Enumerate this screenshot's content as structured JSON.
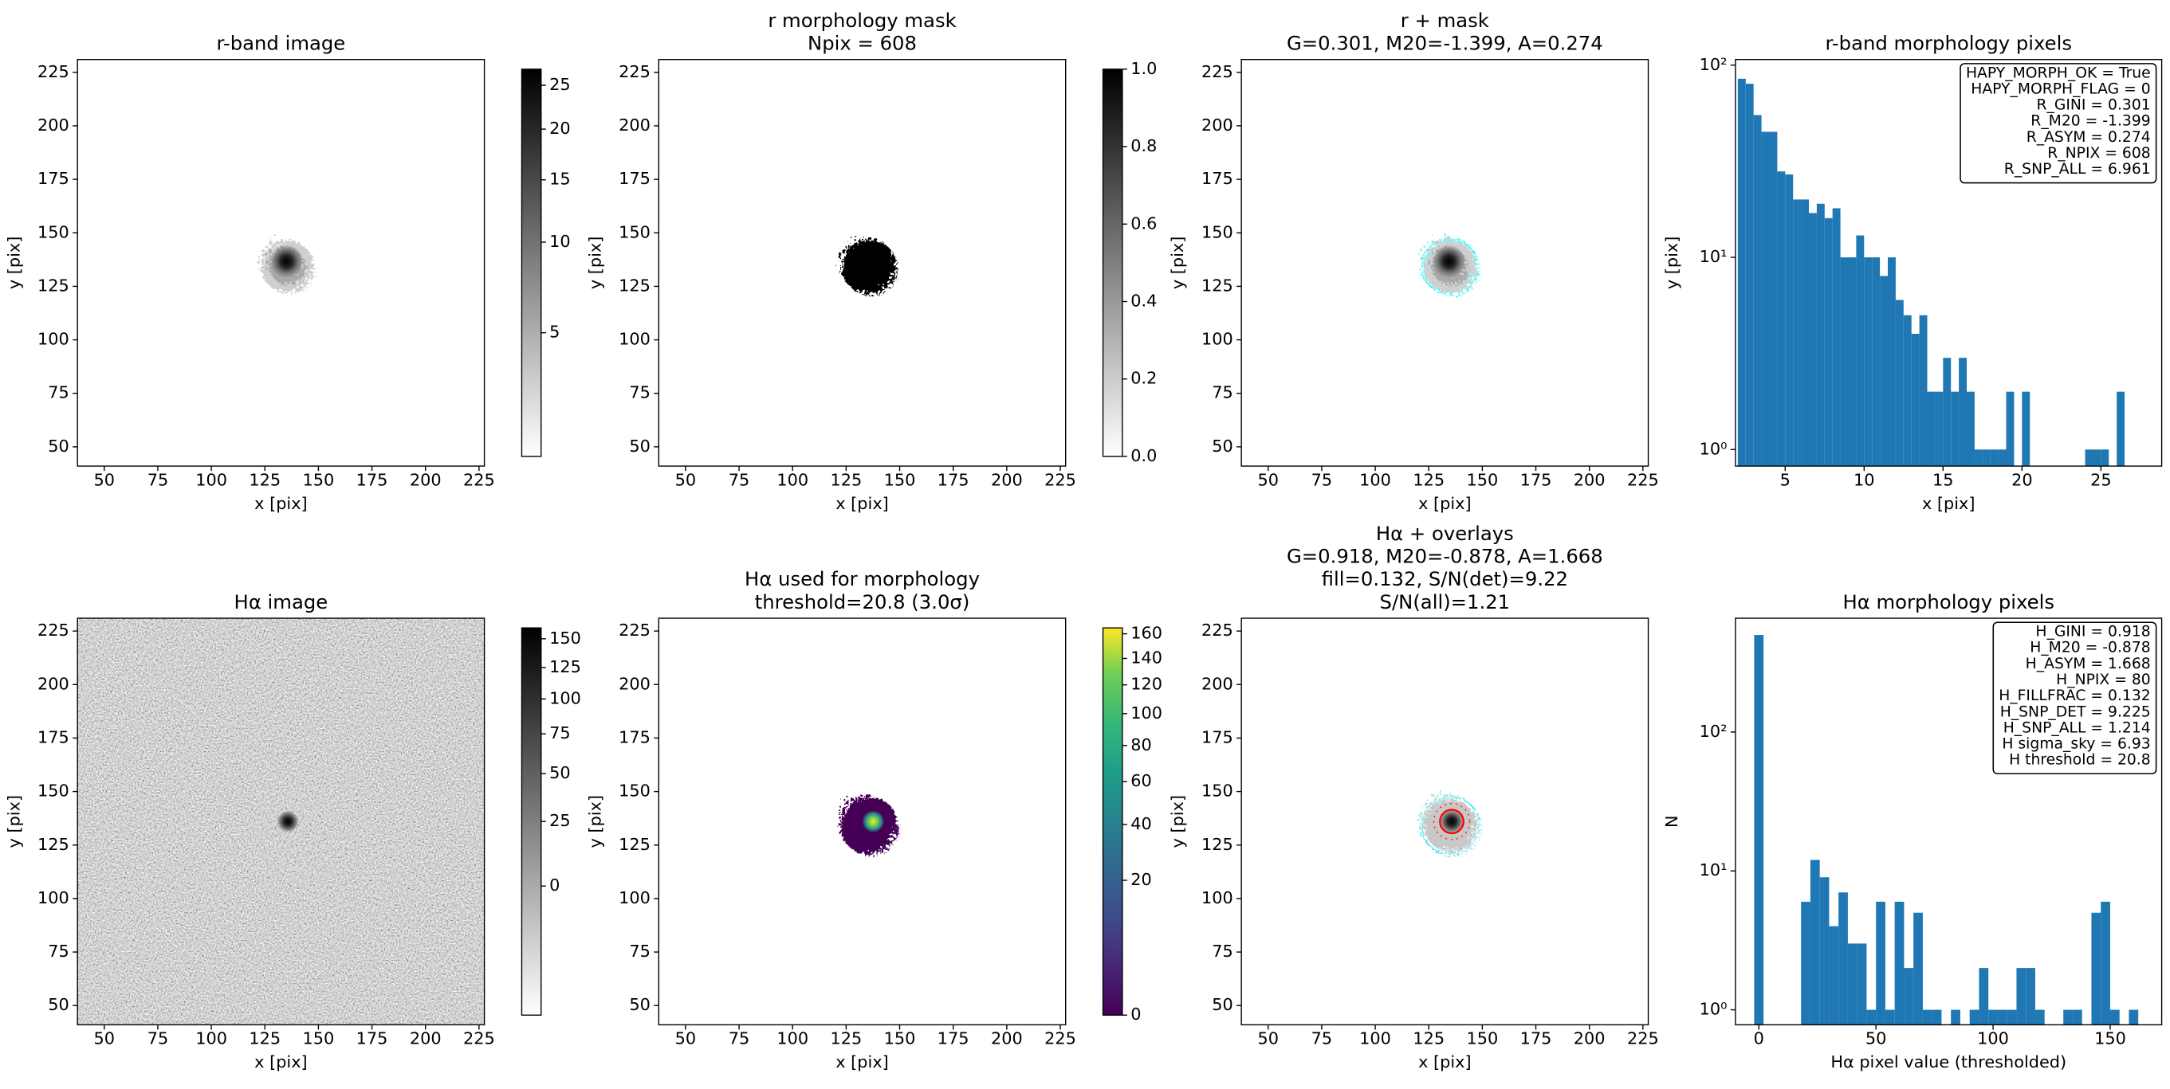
{
  "chart_data": [
    {
      "type": "image",
      "title": "r-band image",
      "xlabel": "x [pix]",
      "ylabel": "y [pix]",
      "xlim": [
        37.5,
        227.5
      ],
      "ylim": [
        41,
        231
      ],
      "xticks": [
        50,
        75,
        100,
        125,
        150,
        175,
        200,
        225
      ],
      "yticks": [
        50,
        75,
        100,
        125,
        150,
        175,
        200,
        225
      ],
      "cmap": "gray_r",
      "colorbar": {
        "lim": [
          2.5,
          27
        ],
        "scale": "sqrt",
        "ticks": [
          5,
          10,
          15,
          20,
          25
        ]
      }
    },
    {
      "type": "image",
      "title": [
        "r morphology mask",
        "Npix = 608"
      ],
      "xlabel": "x [pix]",
      "ylabel": "y [pix]",
      "xlim": [
        37.5,
        227.5
      ],
      "ylim": [
        41,
        231
      ],
      "xticks": [
        50,
        75,
        100,
        125,
        150,
        175,
        200,
        225
      ],
      "yticks": [
        50,
        75,
        100,
        125,
        150,
        175,
        200,
        225
      ],
      "cmap": "gray_r",
      "colorbar": {
        "lim": [
          0,
          1
        ],
        "scale": "linear",
        "ticks": [
          {
            "value": 0,
            "label": "0.0"
          },
          {
            "value": 0.2,
            "label": "0.2"
          },
          {
            "value": 0.4,
            "label": "0.4"
          },
          {
            "value": 0.6,
            "label": "0.6"
          },
          {
            "value": 0.8,
            "label": "0.8"
          },
          {
            "value": 1,
            "label": "1.0"
          }
        ]
      }
    },
    {
      "type": "image",
      "title": [
        "r + mask",
        "G=0.301, M20=-1.399, A=0.274"
      ],
      "xlabel": "x [pix]",
      "ylabel": "y [pix]",
      "xlim": [
        37.5,
        227.5
      ],
      "ylim": [
        41,
        231
      ],
      "xticks": [
        50,
        75,
        100,
        125,
        150,
        175,
        200,
        225
      ],
      "yticks": [
        50,
        75,
        100,
        125,
        150,
        175,
        200,
        225
      ]
    },
    {
      "type": "histogram",
      "title": "r-band morphology pixels",
      "xlabel": "x [pix]",
      "ylabel": "y [pix]",
      "color": "#1f77b4",
      "log_y": true,
      "bins": [
        2,
        2.5,
        3,
        3.5,
        4,
        4.5,
        5,
        5.5,
        6,
        6.5,
        7,
        7.5,
        8,
        8.5,
        9,
        9.5,
        10,
        10.5,
        11,
        11.5,
        12,
        12.5,
        13,
        13.5,
        14,
        14.5,
        15,
        15.5,
        16,
        16.5,
        17,
        17.5,
        18,
        18.5,
        19,
        19.5,
        20,
        20.5,
        21,
        21.5,
        22,
        22.5,
        23,
        23.5,
        24,
        24.5,
        25,
        25.5,
        26,
        26.5,
        27
      ],
      "counts": [
        85,
        80,
        55,
        45,
        45,
        28,
        27,
        20,
        20,
        17,
        19,
        16,
        18,
        10,
        10,
        13,
        10,
        10,
        8,
        10,
        6,
        5,
        4,
        5,
        2,
        2,
        3,
        2,
        3,
        2,
        1,
        1,
        1,
        1,
        2,
        0,
        2,
        0,
        0,
        0,
        0,
        0,
        0,
        0,
        1,
        1,
        1,
        0,
        2,
        0
      ],
      "xlim": [
        1.85,
        28.85
      ],
      "ylim": [
        0.82,
        107
      ],
      "xticks": [
        5,
        10,
        15,
        20,
        25
      ],
      "yticks": [
        {
          "value": 1,
          "label": "10⁰"
        },
        {
          "value": 10,
          "label": "10¹"
        },
        {
          "value": 100,
          "label": "10²"
        }
      ],
      "annotation_corner": "upper right",
      "annotation": [
        "HAPY_MORPH_OK = True",
        "HAPY_MORPH_FLAG = 0",
        "R_GINI = 0.301",
        "R_M20 = -1.399",
        "R_ASYM = 0.274",
        "R_NPIX = 608",
        "R_SNP_ALL = 6.961"
      ]
    },
    {
      "type": "image",
      "title": "Hα image",
      "xlabel": "x [pix]",
      "ylabel": "y [pix]",
      "xlim": [
        37.5,
        227.5
      ],
      "ylim": [
        41,
        231
      ],
      "xticks": [
        50,
        75,
        100,
        125,
        150,
        175,
        200,
        225
      ],
      "yticks": [
        50,
        75,
        100,
        125,
        150,
        175,
        200,
        225
      ],
      "cmap": "gray_r",
      "colorbar": {
        "lim": [
          -20,
          160
        ],
        "scale": "sqrt",
        "ticks": [
          0,
          25,
          50,
          75,
          100,
          125,
          150
        ]
      }
    },
    {
      "type": "image",
      "title": [
        "Hα used for morphology",
        "threshold=20.8 (3.0σ)"
      ],
      "xlabel": "x [pix]",
      "ylabel": "y [pix]",
      "xlim": [
        37.5,
        227.5
      ],
      "ylim": [
        41,
        231
      ],
      "xticks": [
        50,
        75,
        100,
        125,
        150,
        175,
        200,
        225
      ],
      "yticks": [
        50,
        75,
        100,
        125,
        150,
        175,
        200,
        225
      ],
      "cmap": "viridis",
      "colorbar": {
        "lim": [
          0,
          165
        ],
        "scale": "sqrt",
        "ticks": [
          0,
          20,
          40,
          60,
          80,
          100,
          120,
          140,
          160
        ]
      }
    },
    {
      "type": "image",
      "title": [
        "Hα + overlays",
        "G=0.918, M20=-0.878, A=1.668",
        "fill=0.132, S/N(det)=9.22",
        "S/N(all)=1.21"
      ],
      "xlabel": "x [pix]",
      "ylabel": "y [pix]",
      "xlim": [
        37.5,
        227.5
      ],
      "ylim": [
        41,
        231
      ],
      "xticks": [
        50,
        75,
        100,
        125,
        150,
        175,
        200,
        225
      ],
      "yticks": [
        50,
        75,
        100,
        125,
        150,
        175,
        200,
        225
      ]
    },
    {
      "type": "histogram",
      "title": "Hα morphology pixels",
      "xlabel": "Hα pixel value (thresholded)",
      "ylabel": "N",
      "color": "#1f77b4",
      "log_y": true,
      "bins": [
        -2,
        2,
        6,
        10,
        14,
        18,
        22,
        26,
        30,
        34,
        38,
        42,
        46,
        50,
        54,
        58,
        62,
        66,
        70,
        74,
        78,
        82,
        86,
        90,
        94,
        98,
        102,
        106,
        110,
        114,
        118,
        122,
        126,
        130,
        134,
        138,
        142,
        146,
        150,
        154,
        158,
        162,
        166
      ],
      "counts": [
        500,
        0,
        0,
        0,
        0,
        6,
        12,
        9,
        4,
        7,
        3,
        3,
        1,
        6,
        1,
        6,
        2,
        5,
        1,
        1,
        0,
        1,
        0,
        1,
        2,
        1,
        1,
        1,
        2,
        2,
        1,
        0,
        0,
        1,
        1,
        0,
        5,
        6,
        1,
        0,
        1,
        0
      ],
      "xlim": [
        -10,
        172
      ],
      "ylim": [
        0.78,
        660
      ],
      "xticks": [
        0,
        50,
        100,
        150
      ],
      "yticks": [
        {
          "value": 1,
          "label": "10⁰"
        },
        {
          "value": 10,
          "label": "10¹"
        },
        {
          "value": 100,
          "label": "10²"
        }
      ],
      "annotation_corner": "upper right",
      "annotation": [
        "H_GINI = 0.918",
        "H_M20 = -0.878",
        "H_ASYM = 1.668",
        "H_NPIX = 80",
        "H_FILLFRAC = 0.132",
        "H_SNP_DET = 9.225",
        "H_SNP_ALL = 1.214",
        "H sigma_sky = 6.93",
        "H threshold = 20.8"
      ]
    }
  ]
}
